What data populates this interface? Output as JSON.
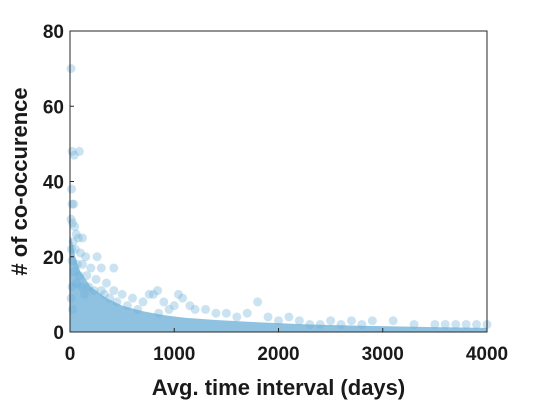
{
  "chart_data": {
    "type": "scatter",
    "title": "",
    "xlabel": "Avg. time interval (days)",
    "ylabel": "# of co-occurence",
    "xlim": [
      0,
      4000
    ],
    "ylim": [
      0,
      80
    ],
    "xticks": [
      0,
      1000,
      2000,
      3000,
      4000
    ],
    "yticks": [
      0,
      20,
      40,
      60,
      80
    ],
    "xtick_labels": [
      "0",
      "1000",
      "2000",
      "3000",
      "4000"
    ],
    "ytick_labels": [
      "0",
      "20",
      "40",
      "60",
      "80"
    ],
    "grid": false,
    "legend": "none",
    "marker_color": "#6aaed6",
    "marker_opacity": 0.35,
    "series": [
      {
        "points": [
          [
            10,
            70
          ],
          [
            20,
            48
          ],
          [
            40,
            47
          ],
          [
            90,
            48
          ],
          [
            15,
            38
          ],
          [
            20,
            34
          ],
          [
            35,
            34
          ],
          [
            10,
            30
          ],
          [
            25,
            29
          ],
          [
            45,
            28
          ],
          [
            60,
            26
          ],
          [
            80,
            25
          ],
          [
            120,
            25
          ],
          [
            30,
            24
          ],
          [
            15,
            22
          ],
          [
            50,
            22
          ],
          [
            100,
            21
          ],
          [
            150,
            20
          ],
          [
            260,
            20
          ],
          [
            20,
            19
          ],
          [
            70,
            18
          ],
          [
            120,
            18
          ],
          [
            200,
            17
          ],
          [
            300,
            17
          ],
          [
            420,
            17
          ],
          [
            40,
            16
          ],
          [
            90,
            15
          ],
          [
            160,
            15
          ],
          [
            250,
            14
          ],
          [
            350,
            13
          ],
          [
            60,
            13
          ],
          [
            110,
            12
          ],
          [
            180,
            12
          ],
          [
            300,
            11
          ],
          [
            420,
            11
          ],
          [
            500,
            10
          ],
          [
            600,
            9
          ],
          [
            760,
            10
          ],
          [
            800,
            10
          ],
          [
            840,
            11
          ],
          [
            1040,
            10
          ],
          [
            1080,
            9
          ],
          [
            700,
            8
          ],
          [
            900,
            8
          ],
          [
            1150,
            7
          ],
          [
            550,
            7
          ],
          [
            1300,
            6
          ],
          [
            1500,
            5
          ],
          [
            1800,
            8
          ],
          [
            1700,
            5
          ],
          [
            1900,
            4
          ],
          [
            2100,
            4
          ],
          [
            2200,
            3
          ],
          [
            2500,
            3
          ],
          [
            2700,
            3
          ],
          [
            2900,
            3
          ],
          [
            3100,
            3
          ],
          [
            3300,
            2
          ],
          [
            3600,
            2
          ],
          [
            3800,
            2
          ],
          [
            3900,
            2
          ],
          [
            4000,
            2
          ],
          [
            3500,
            2
          ],
          [
            3700,
            2
          ],
          [
            2800,
            2
          ],
          [
            2600,
            2
          ],
          [
            2400,
            2
          ],
          [
            2300,
            2
          ],
          [
            2000,
            3
          ],
          [
            1600,
            4
          ],
          [
            1400,
            5
          ],
          [
            1200,
            6
          ],
          [
            1000,
            7
          ],
          [
            950,
            6
          ],
          [
            850,
            5
          ],
          [
            650,
            6
          ],
          [
            450,
            8
          ],
          [
            380,
            9
          ],
          [
            330,
            10
          ],
          [
            230,
            11
          ],
          [
            140,
            10
          ],
          [
            20,
            12
          ],
          [
            10,
            9
          ],
          [
            25,
            6
          ]
        ]
      }
    ]
  }
}
